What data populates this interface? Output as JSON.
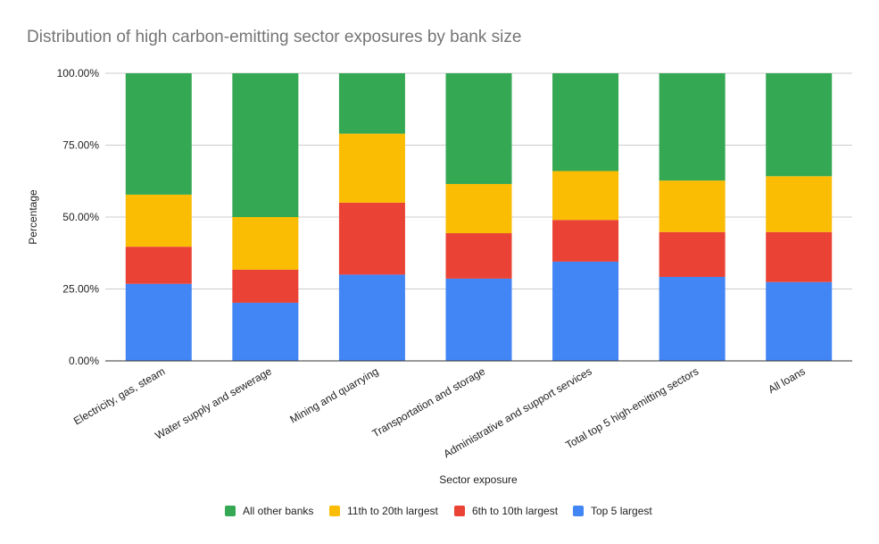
{
  "chart_data": {
    "type": "bar",
    "stacked": true,
    "title": "Distribution of high carbon-emitting sector exposures by bank size",
    "xlabel": "Sector exposure",
    "ylabel": "Percentage",
    "ylim": [
      0,
      100
    ],
    "yticks": [
      "0.00%",
      "25.00%",
      "50.00%",
      "75.00%",
      "100.00%"
    ],
    "grid": true,
    "legend_position": "bottom",
    "categories": [
      "Electricity, gas, steam",
      "Water supply and sewerage",
      "Mining and quarrying",
      "Transportation and storage",
      "Administrative and support services",
      "Total top 5 high-emitting sectors",
      "All loans"
    ],
    "series": [
      {
        "name": "Top 5 largest",
        "color": "#4285f4",
        "values": [
          26.8,
          20.2,
          30.0,
          28.6,
          34.5,
          29.2,
          27.4
        ]
      },
      {
        "name": "6th to 10th largest",
        "color": "#ea4335",
        "values": [
          12.9,
          11.5,
          25.0,
          15.8,
          14.5,
          15.6,
          17.4
        ]
      },
      {
        "name": "11th to 20th largest",
        "color": "#fbbc04",
        "values": [
          18.1,
          18.3,
          24.0,
          17.1,
          17.0,
          17.9,
          19.4
        ]
      },
      {
        "name": "All other banks",
        "color": "#34a853",
        "values": [
          42.2,
          50.0,
          21.0,
          38.5,
          34.0,
          37.3,
          35.8
        ]
      }
    ],
    "legend_order": [
      "All other banks",
      "11th to 20th largest",
      "6th to 10th largest",
      "Top 5 largest"
    ]
  }
}
